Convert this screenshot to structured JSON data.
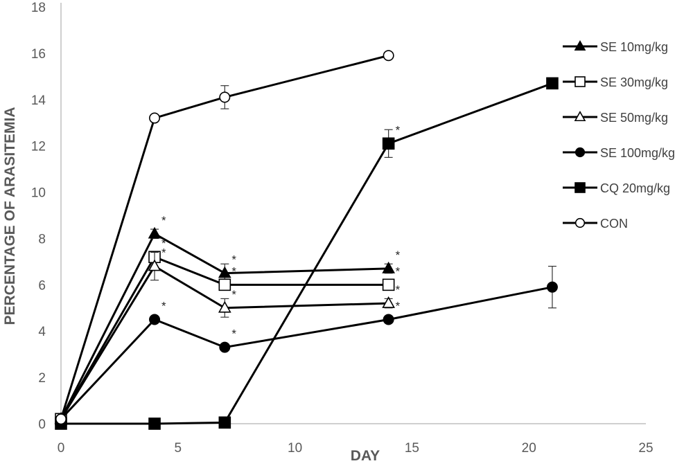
{
  "chart_data": {
    "type": "line",
    "xlabel": "DAY",
    "ylabel": "PERCENTAGE OF ARASITEMIA",
    "xlim": [
      0,
      25
    ],
    "ylim": [
      0,
      18
    ],
    "x_ticks": [
      0,
      5,
      10,
      15,
      20,
      25
    ],
    "y_ticks": [
      0,
      2,
      4,
      6,
      8,
      10,
      12,
      14,
      16,
      18
    ],
    "grid": false,
    "legend_position": "right",
    "line_color": "#000000",
    "series": [
      {
        "name": "SE 10mg/kg",
        "marker": "filled-triangle",
        "x": [
          0,
          4,
          7,
          14
        ],
        "y": [
          0.2,
          8.2,
          6.5,
          6.7
        ],
        "error": [
          0,
          0.2,
          0.4,
          0.2
        ],
        "significant": [
          false,
          true,
          true,
          true
        ]
      },
      {
        "name": "SE 30mg/kg",
        "marker": "open-square",
        "x": [
          0,
          4,
          7,
          14
        ],
        "y": [
          0.2,
          7.2,
          6.0,
          6.0
        ],
        "error": [
          0,
          0,
          0,
          0
        ],
        "significant": [
          false,
          true,
          true,
          true
        ]
      },
      {
        "name": "SE 50mg/kg",
        "marker": "open-triangle",
        "x": [
          0,
          4,
          7,
          14
        ],
        "y": [
          0.2,
          6.8,
          5.0,
          5.2
        ],
        "error": [
          0,
          0.6,
          0.4,
          0.2
        ],
        "significant": [
          false,
          true,
          true,
          true
        ]
      },
      {
        "name": "SE 100mg/kg",
        "marker": "filled-circle",
        "x": [
          0,
          4,
          7,
          14,
          21
        ],
        "y": [
          0.2,
          4.5,
          3.3,
          4.5,
          5.9
        ],
        "error": [
          0,
          0,
          0,
          0,
          0.9
        ],
        "significant": [
          false,
          true,
          true,
          true,
          false
        ]
      },
      {
        "name": "CQ 20mg/kg",
        "marker": "filled-square",
        "x": [
          0,
          4,
          7,
          14,
          21
        ],
        "y": [
          0,
          0,
          0.05,
          12.1,
          14.7
        ],
        "error": [
          0,
          0,
          0,
          0.6,
          0
        ],
        "significant": [
          false,
          false,
          false,
          true,
          false
        ]
      },
      {
        "name": "CON",
        "marker": "open-circle",
        "x": [
          0,
          4,
          7,
          14
        ],
        "y": [
          0.2,
          13.2,
          14.1,
          15.9
        ],
        "error": [
          0,
          0,
          0.5,
          0
        ],
        "significant": [
          false,
          false,
          false,
          false
        ]
      }
    ],
    "significance_symbol": "*"
  }
}
